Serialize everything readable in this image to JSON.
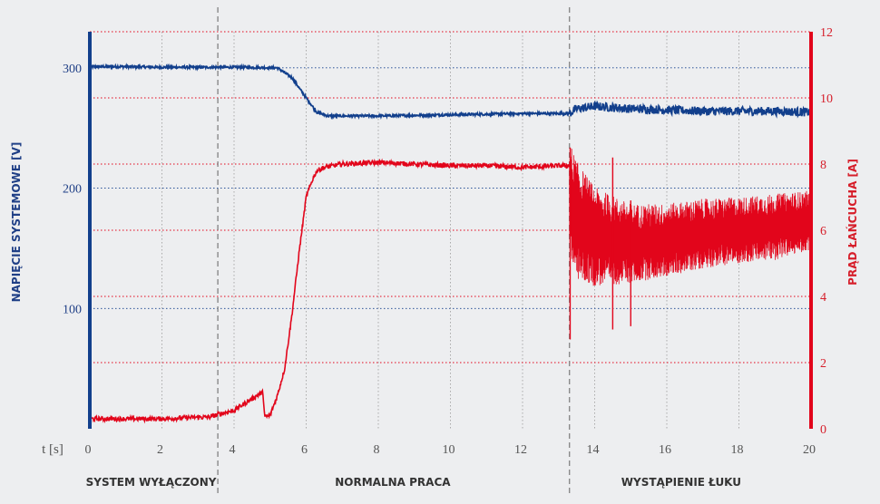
{
  "chart_data": {
    "type": "line",
    "xlabel": "t [s]",
    "ylabel_left": "NAPIĘCIE SYSTEMOWE [V]",
    "ylabel_right": "PRĄD ŁAŃCUCHA [A]",
    "xlim": [
      0,
      20
    ],
    "ylim_left": [
      0,
      330
    ],
    "ylim_right": [
      0,
      12
    ],
    "x_ticks": [
      0,
      2,
      4,
      6,
      8,
      10,
      12,
      14,
      16,
      18,
      20
    ],
    "y_left_ticks": [
      100,
      200,
      300
    ],
    "y_right_ticks": [
      0,
      2,
      4,
      6,
      8,
      10,
      12
    ],
    "grid": true,
    "phase_dividers": [
      3.55,
      13.3
    ],
    "phase_labels": [
      {
        "label": "SYSTEM WYŁĄCZONY",
        "center": 1.7
      },
      {
        "label": "NORMALNA PRACA",
        "center": 8.4
      },
      {
        "label": "WYSTĄPIENIE ŁUKU",
        "center": 16.4
      }
    ],
    "colors": {
      "voltage": "#123f8c",
      "current": "#e2051b",
      "left_axis": "#123f8c",
      "right_axis": "#e2051b"
    },
    "series": [
      {
        "name": "",
        "axis": "left",
        "color": "#123f8c",
        "x": [
          0,
          1,
          2,
          3,
          4,
          5.2,
          5.6,
          6.0,
          6.3,
          6.6,
          8,
          10,
          12,
          13.3,
          13.5,
          14,
          15,
          16,
          17,
          18,
          19,
          20
        ],
        "y": [
          301,
          301,
          300.5,
          300.5,
          300.5,
          300,
          292,
          275,
          263,
          260,
          260,
          261,
          262,
          262,
          266,
          268,
          266,
          265,
          264,
          264,
          264,
          263
        ]
      },
      {
        "name": "",
        "axis": "right",
        "color": "#e2051b",
        "x": [
          0,
          1,
          2,
          3,
          3.3,
          3.6,
          4.0,
          4.2,
          4.7,
          4.8,
          4.85,
          5.0,
          5.2,
          5.4,
          5.6,
          5.8,
          6.0,
          6.2,
          6.3,
          6.5,
          7,
          8,
          9,
          10,
          11,
          12,
          13,
          13.3
        ],
        "y": [
          0.3,
          0.3,
          0.3,
          0.35,
          0.35,
          0.45,
          0.55,
          0.7,
          1.05,
          1.1,
          0.35,
          0.4,
          1.0,
          1.8,
          3.4,
          5.3,
          7.0,
          7.6,
          7.8,
          7.9,
          8.0,
          8.05,
          8.0,
          7.95,
          7.95,
          7.9,
          7.95,
          7.95
        ],
        "arc_segment": {
          "x": [
            13.3,
            13.5,
            14.0,
            15,
            16,
            17,
            18,
            19,
            20
          ],
          "center": [
            7.0,
            6.3,
            5.8,
            5.6,
            5.7,
            5.9,
            6.0,
            6.1,
            6.3
          ],
          "amplitude": [
            1.7,
            1.8,
            1.5,
            1.2,
            1.1,
            1.05,
            1.0,
            1.0,
            0.9
          ]
        },
        "spikes": [
          {
            "x": 13.32,
            "y_low": 2.7,
            "y_high": 8.5
          },
          {
            "x": 14.5,
            "y_low": 3.0,
            "y_high": 8.2
          },
          {
            "x": 15.0,
            "y_low": 3.1,
            "y_high": 6.9
          }
        ]
      }
    ]
  }
}
